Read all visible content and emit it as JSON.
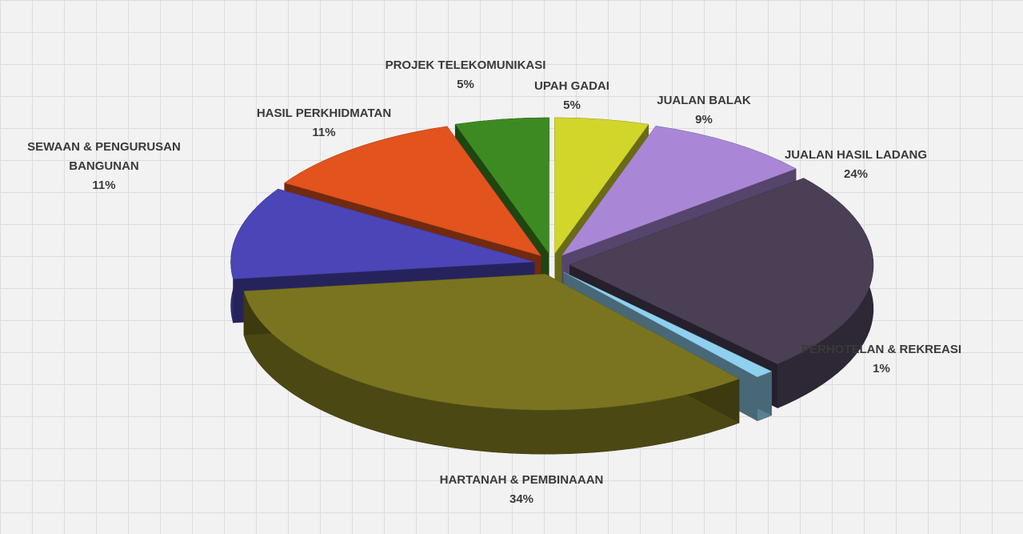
{
  "chart_data": {
    "type": "pie",
    "categories": [
      "UPAH GADAI",
      "JUALAN BALAK",
      "JUALAN HASIL LADANG",
      "PERHOTELAN & REKREASI",
      "HARTANAH & PEMBINAAAN",
      "SEWAAN & PENGURUSAN BANGUNAN",
      "HASIL PERKHIDMATAN",
      "PROJEK TELEKOMUNIKASI"
    ],
    "values": [
      5,
      9,
      24,
      1,
      34,
      11,
      11,
      5
    ],
    "value_labels": [
      "5%",
      "9%",
      "24%",
      "1%",
      "34%",
      "11%",
      "11%",
      "5%"
    ],
    "colors": [
      "#d2d62a",
      "#a987d6",
      "#4a3f55",
      "#8fd0ef",
      "#7a7420",
      "#4b45b8",
      "#e2531e",
      "#3e8a22"
    ]
  }
}
